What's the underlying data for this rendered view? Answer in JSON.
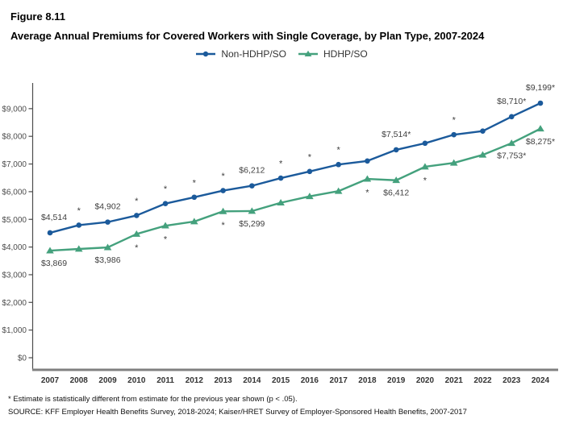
{
  "figure_label": "Figure 8.11",
  "title": "Average Annual Premiums for Covered Workers with Single Coverage, by Plan Type, 2007-2024",
  "footnotes": {
    "significance": "* Estimate is statistically different from estimate for the previous year shown (p < .05).",
    "source": "SOURCE: KFF Employer Health Benefits Survey, 2018-2024; Kaiser/HRET Survey of Employer-Sponsored Health Benefits, 2007-2017"
  },
  "colors": {
    "non_hdhp_line": "#1B5A9B",
    "hdhp_line": "#44A17D",
    "axis": "#4d4d4d",
    "x_axis_line": "#808080",
    "tick_text": "#4d4d4d",
    "year_text": "#333333",
    "data_label_text": "#3f3f3f"
  },
  "chart_data": {
    "type": "line",
    "title": "Average Annual Premiums for Covered Workers with Single Coverage, by Plan Type, 2007-2024",
    "xlabel": "",
    "ylabel": "",
    "x": [
      2007,
      2008,
      2009,
      2010,
      2011,
      2012,
      2013,
      2014,
      2015,
      2016,
      2017,
      2018,
      2019,
      2020,
      2021,
      2022,
      2023,
      2024
    ],
    "ylim": [
      0,
      9900
    ],
    "grid": false,
    "legend_position": "top-center",
    "y_ticks": {
      "values": [
        0,
        1000,
        2000,
        3000,
        4000,
        5000,
        6000,
        7000,
        8000,
        9000
      ],
      "labels": [
        "$0",
        "$1,000",
        "$2,000",
        "$3,000",
        "$4,000",
        "$5,000",
        "$6,000",
        "$7,000",
        "$8,000",
        "$9,000"
      ]
    },
    "series": [
      {
        "name": "Non-HDHP/SO",
        "color": "#1B5A9B",
        "marker": "circle",
        "values": [
          4514,
          4790,
          4902,
          5140,
          5570,
          5800,
          6040,
          6212,
          6490,
          6730,
          6980,
          7110,
          7514,
          7750,
          8060,
          8190,
          8710,
          9199
        ],
        "labeled_points_note": "unlabeled values estimated from gridlines",
        "point_labels": {
          "2007": "$4,514",
          "2009": "$4,902",
          "2014": "$6,212",
          "2019": "$7,514*",
          "2023": "$8,710*",
          "2024": "$9,199*"
        },
        "label_position": "above",
        "asterisk_years": [
          2008,
          2010,
          2011,
          2012,
          2013,
          2015,
          2016,
          2017,
          2021
        ]
      },
      {
        "name": "HDHP/SO",
        "color": "#44A17D",
        "marker": "triangle",
        "values": [
          3869,
          3930,
          3986,
          4470,
          4770,
          4920,
          5290,
          5299,
          5600,
          5830,
          6020,
          6460,
          6412,
          6900,
          7040,
          7330,
          7753,
          8275
        ],
        "labeled_points_note": "unlabeled values estimated from gridlines",
        "point_labels": {
          "2007": "$3,869",
          "2009": "$3,986",
          "2014": "$5,299",
          "2019": "$6,412",
          "2023": "$7,753*",
          "2024": "$8,275*"
        },
        "label_position": "below",
        "asterisk_years": [
          2010,
          2011,
          2013,
          2018,
          2020
        ]
      }
    ]
  }
}
